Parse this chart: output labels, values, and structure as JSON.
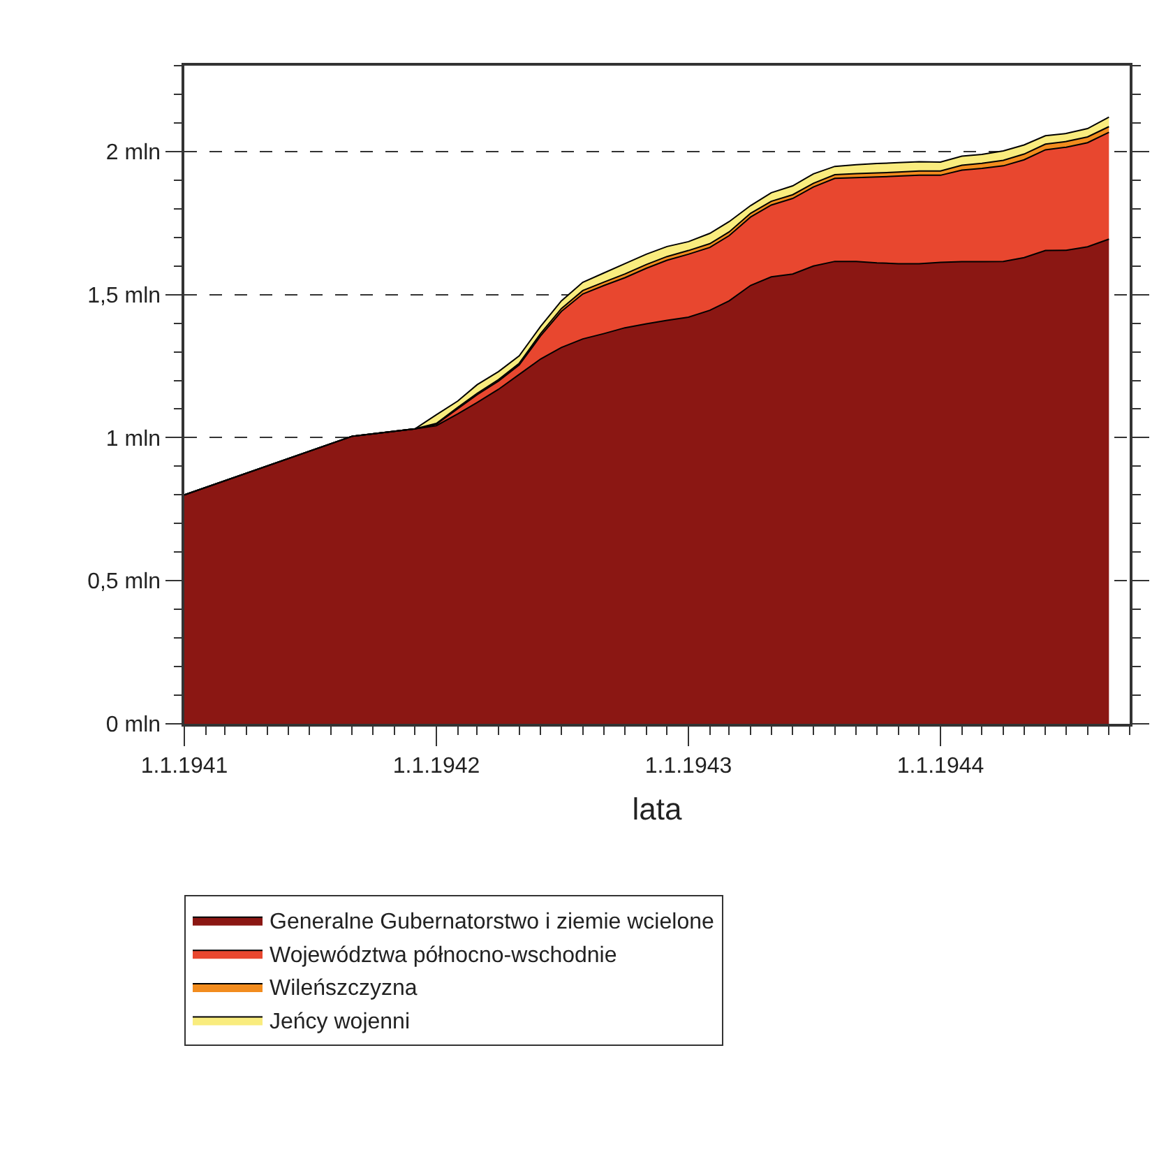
{
  "chart_data": {
    "type": "area",
    "stacked": true,
    "xlabel": "lata",
    "x": [
      "1941-01-01",
      "1941-09-01",
      "1941-12-01",
      "1942-01-01",
      "1942-02-01",
      "1942-03-01",
      "1942-04-01",
      "1942-05-01",
      "1942-06-01",
      "1942-07-01",
      "1942-08-01",
      "1942-09-01",
      "1942-10-01",
      "1942-11-01",
      "1942-12-01",
      "1943-01-01",
      "1943-02-01",
      "1943-03-01",
      "1943-04-01",
      "1943-05-01",
      "1943-06-01",
      "1943-07-01",
      "1943-08-01",
      "1943-09-01",
      "1943-10-01",
      "1943-11-01",
      "1943-12-01",
      "1944-01-01",
      "1944-02-01",
      "1944-03-01",
      "1944-04-01",
      "1944-05-01",
      "1944-06-01",
      "1944-07-01",
      "1944-08-01",
      "1944-09-01"
    ],
    "series": [
      {
        "name": "Generalne Gubernatorstwo i ziemie wcielone",
        "color": "#8b1713",
        "values": [
          0.8,
          1.005,
          1.031,
          1.042,
          1.083,
          1.123,
          1.169,
          1.221,
          1.275,
          1.315,
          1.345,
          1.364,
          1.384,
          1.398,
          1.41,
          1.421,
          1.445,
          1.478,
          1.532,
          1.562,
          1.572,
          1.6,
          1.616,
          1.616,
          1.611,
          1.608,
          1.608,
          1.613,
          1.615,
          1.615,
          1.616,
          1.629,
          1.654,
          1.655,
          1.667,
          1.694
        ]
      },
      {
        "name": "Województwa północno-wschodnie",
        "color": "#e8472f",
        "values": [
          0,
          0,
          0,
          0.005,
          0.018,
          0.027,
          0.029,
          0.033,
          0.081,
          0.126,
          0.157,
          0.168,
          0.175,
          0.194,
          0.21,
          0.22,
          0.22,
          0.228,
          0.239,
          0.251,
          0.264,
          0.276,
          0.29,
          0.293,
          0.3,
          0.306,
          0.309,
          0.304,
          0.32,
          0.326,
          0.334,
          0.342,
          0.352,
          0.36,
          0.364,
          0.373
        ]
      },
      {
        "name": "Wileńszczyzna",
        "color": "#f28c1e",
        "values": [
          0,
          0,
          0,
          0.003,
          0.005,
          0.005,
          0.005,
          0.006,
          0.008,
          0.01,
          0.012,
          0.012,
          0.013,
          0.013,
          0.013,
          0.013,
          0.013,
          0.013,
          0.013,
          0.013,
          0.013,
          0.013,
          0.013,
          0.014,
          0.014,
          0.014,
          0.015,
          0.015,
          0.017,
          0.018,
          0.019,
          0.02,
          0.02,
          0.02,
          0.02,
          0.02
        ]
      },
      {
        "name": "Jeńcy wojenni",
        "color": "#f9ec7e",
        "values": [
          0,
          0,
          0,
          0.03,
          0.022,
          0.03,
          0.028,
          0.026,
          0.025,
          0.027,
          0.029,
          0.032,
          0.036,
          0.036,
          0.035,
          0.031,
          0.036,
          0.036,
          0.027,
          0.03,
          0.031,
          0.033,
          0.029,
          0.031,
          0.033,
          0.033,
          0.032,
          0.031,
          0.032,
          0.031,
          0.033,
          0.032,
          0.029,
          0.028,
          0.029,
          0.033
        ]
      }
    ],
    "xlim": [
      "1941-01-01",
      "1944-10-01"
    ],
    "xticks": [
      {
        "value": "1941-01-01",
        "label": "1.1.1941"
      },
      {
        "value": "1942-01-01",
        "label": "1.1.1942"
      },
      {
        "value": "1943-01-01",
        "label": "1.1.1943"
      },
      {
        "value": "1944-01-01",
        "label": "1.1.1944"
      }
    ],
    "ylim": [
      0,
      2.3
    ],
    "yticks": [
      {
        "value": 0,
        "label": "0 mln"
      },
      {
        "value": 0.5,
        "label": "0,5 mln"
      },
      {
        "value": 1,
        "label": "1 mln"
      },
      {
        "value": 1.5,
        "label": "1,5 mln"
      },
      {
        "value": 2,
        "label": "2 mln"
      }
    ],
    "grid": "y",
    "legend": "bottom",
    "marker": "none"
  }
}
